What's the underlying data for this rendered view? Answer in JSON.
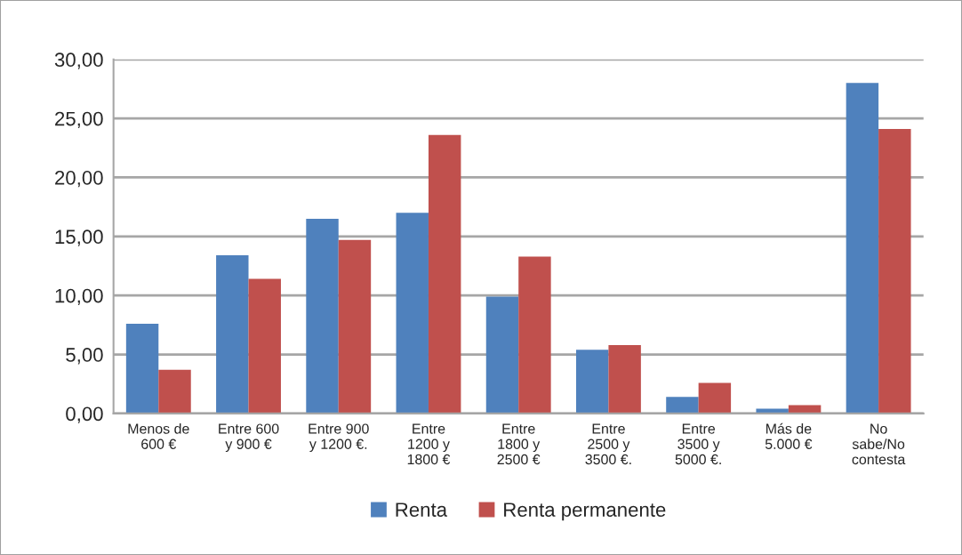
{
  "chart_data": {
    "type": "bar",
    "categories": [
      "Menos de\n600 €",
      "Entre 600\ny 900 €",
      "Entre 900\ny 1200 €.",
      "Entre\n1200 y\n1800 €",
      "Entre\n1800 y\n2500 €",
      "Entre\n2500 y\n3500 €.",
      "Entre\n3500 y\n5000 €.",
      "Más de\n5.000 €",
      "No\nsabe/No\ncontesta"
    ],
    "series": [
      {
        "name": "Renta",
        "color": "#4f81bd",
        "values": [
          7.6,
          13.4,
          16.5,
          17.0,
          9.9,
          5.4,
          1.4,
          0.4,
          28.0
        ]
      },
      {
        "name": "Renta permanente",
        "color": "#c0504d",
        "values": [
          3.7,
          11.4,
          14.7,
          23.6,
          13.3,
          5.8,
          2.6,
          0.7,
          24.1
        ]
      }
    ],
    "ylim": [
      0,
      30
    ],
    "yticks": [
      {
        "value": 0,
        "label": "0,00"
      },
      {
        "value": 5,
        "label": "5,00"
      },
      {
        "value": 10,
        "label": "10,00"
      },
      {
        "value": 15,
        "label": "15,00"
      },
      {
        "value": 20,
        "label": "20,00"
      },
      {
        "value": 25,
        "label": "25,00"
      },
      {
        "value": 30,
        "label": "30,00"
      }
    ],
    "grid": "y",
    "legend": "bottom"
  }
}
